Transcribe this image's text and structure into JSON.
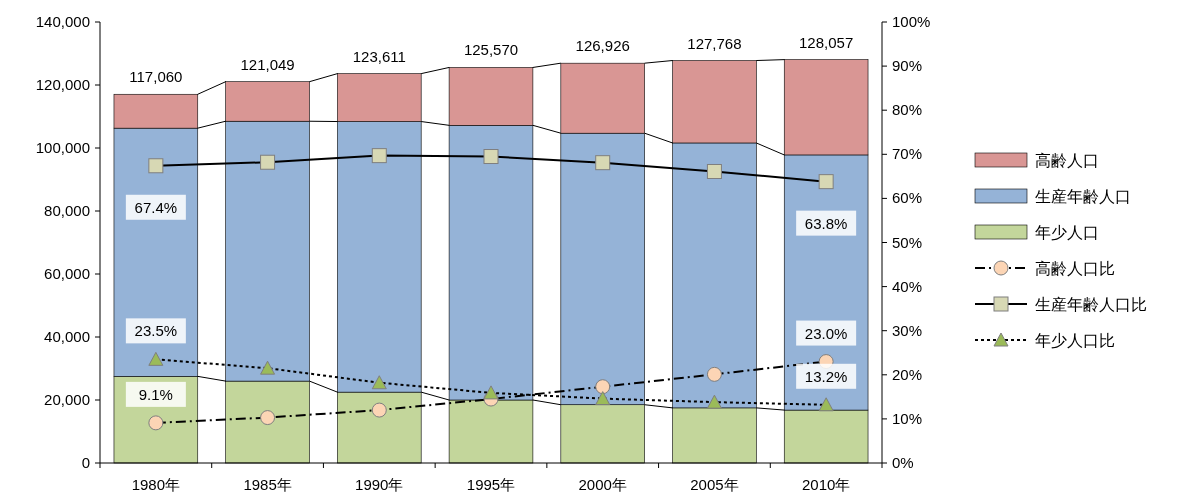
{
  "chart_data": {
    "type": "bar",
    "stacked": true,
    "categories": [
      "1980年",
      "1985年",
      "1990年",
      "1995年",
      "2000年",
      "2005年",
      "2010年"
    ],
    "series": [
      {
        "name": "年少人口",
        "color": "#c3d69b",
        "values": [
          27500,
          26000,
          22500,
          20000,
          18500,
          17500,
          16800
        ]
      },
      {
        "name": "生産年齢人口",
        "color": "#95b3d7",
        "values": [
          78800,
          82500,
          85900,
          87200,
          86200,
          84100,
          81000
        ]
      },
      {
        "name": "高齢人口",
        "color": "#d99694",
        "values": [
          10760,
          12549,
          15211,
          18370,
          22226,
          26168,
          30257
        ]
      },
      {
        "name": "高齢人口比",
        "type": "line",
        "axis": "y2",
        "color": "#fcd5b5",
        "marker": "circle",
        "line_style": "dashdot",
        "values": [
          9.1,
          10.3,
          12.0,
          14.5,
          17.3,
          20.1,
          23.0
        ],
        "value_labels": [
          "9.1%",
          null,
          null,
          null,
          null,
          null,
          "23.0%"
        ]
      },
      {
        "name": "生産年齢人口比",
        "type": "line",
        "axis": "y2",
        "color": "#d7d8b4",
        "marker": "square",
        "line_style": "solid",
        "values": [
          67.4,
          68.2,
          69.7,
          69.5,
          68.1,
          66.1,
          63.8
        ],
        "value_labels": [
          "67.4%",
          null,
          null,
          null,
          null,
          null,
          "63.8%"
        ]
      },
      {
        "name": "年少人口比",
        "type": "line",
        "axis": "y2",
        "color": "#9bbb59",
        "marker": "triangle",
        "line_style": "dotted",
        "values": [
          23.5,
          21.5,
          18.2,
          15.9,
          14.6,
          13.8,
          13.2
        ],
        "value_labels": [
          "23.5%",
          null,
          null,
          null,
          null,
          null,
          "13.2%"
        ]
      }
    ],
    "totals": [
      "117,060",
      "121,049",
      "123,611",
      "125,570",
      "126,926",
      "127,768",
      "128,057"
    ],
    "ylim": [
      0,
      140000
    ],
    "yticks": [
      {
        "value": 0,
        "label": "0"
      },
      {
        "value": 20000,
        "label": "20,000"
      },
      {
        "value": 40000,
        "label": "40,000"
      },
      {
        "value": 60000,
        "label": "60,000"
      },
      {
        "value": 80000,
        "label": "80,000"
      },
      {
        "value": 100000,
        "label": "100,000"
      },
      {
        "value": 120000,
        "label": "120,000"
      },
      {
        "value": 140000,
        "label": "140,000"
      }
    ],
    "y2lim": [
      0,
      100
    ],
    "y2ticks": [
      {
        "value": 0,
        "label": "0%"
      },
      {
        "value": 10,
        "label": "10%"
      },
      {
        "value": 20,
        "label": "20%"
      },
      {
        "value": 30,
        "label": "30%"
      },
      {
        "value": 40,
        "label": "40%"
      },
      {
        "value": 50,
        "label": "50%"
      },
      {
        "value": 60,
        "label": "60%"
      },
      {
        "value": 70,
        "label": "70%"
      },
      {
        "value": 80,
        "label": "80%"
      },
      {
        "value": 90,
        "label": "90%"
      },
      {
        "value": 100,
        "label": "100%"
      }
    ],
    "legend": "right",
    "grid": false
  }
}
